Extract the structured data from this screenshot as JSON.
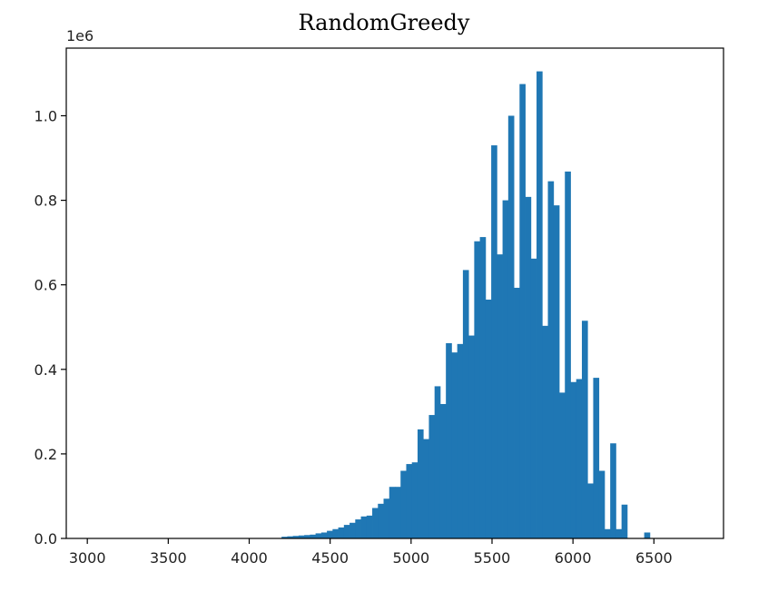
{
  "chart_data": {
    "type": "bar",
    "title": "RandomGreedy",
    "xlabel": "",
    "ylabel": "",
    "y_offset_label": "1e6",
    "xlim": [
      2870,
      6930
    ],
    "ylim": [
      0,
      1.16
    ],
    "x_ticks": [
      3000,
      3500,
      4000,
      4500,
      5000,
      5500,
      6000,
      6500
    ],
    "y_ticks": [
      0.0,
      0.2,
      0.4,
      0.6,
      0.8,
      1.0
    ],
    "y_tick_labels": [
      "0.0",
      "0.2",
      "0.4",
      "0.6",
      "0.8",
      "1.0"
    ],
    "bar_color": "#1f77b4",
    "grid": false,
    "bins": {
      "start": 4200,
      "width": 35,
      "values": [
        0.004,
        0.005,
        0.006,
        0.007,
        0.008,
        0.009,
        0.012,
        0.014,
        0.018,
        0.022,
        0.026,
        0.032,
        0.037,
        0.045,
        0.052,
        0.054,
        0.072,
        0.082,
        0.094,
        0.122,
        0.122,
        0.16,
        0.176,
        0.18,
        0.258,
        0.235,
        0.292,
        0.36,
        0.318,
        0.462,
        0.44,
        0.46,
        0.635,
        0.48,
        0.703,
        0.713,
        0.565,
        0.93,
        0.672,
        0.8,
        1.0,
        0.593,
        1.075,
        0.808,
        0.662,
        1.105,
        0.503,
        0.845,
        0.788,
        0.345,
        0.868,
        0.37,
        0.377,
        0.515,
        0.13,
        0.38,
        0.16,
        0.022,
        0.225,
        0.022,
        0.08,
        0.0,
        0.0,
        0.0,
        0.014
      ]
    }
  }
}
